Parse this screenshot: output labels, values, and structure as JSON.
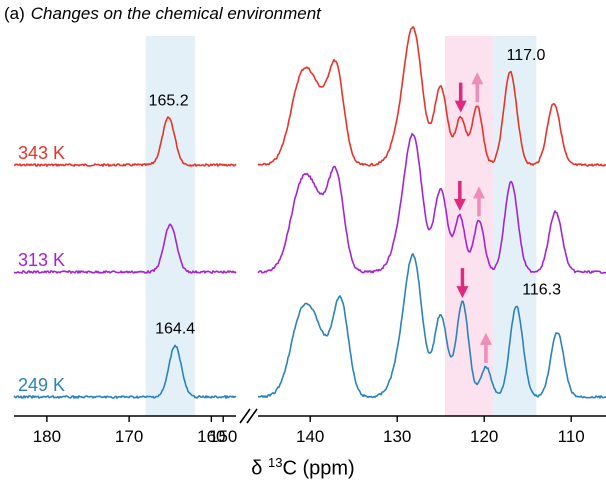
{
  "panel": {
    "tag": "(a)",
    "title": "Changes on the chemical environment"
  },
  "chart_data": {
    "type": "line",
    "xlabel": {
      "prefix": "δ ",
      "sup": "13",
      "suffix": "C (ppm)"
    },
    "x_reversed": true,
    "axis_break": {
      "between": [
        157,
        146
      ]
    },
    "xlim_left_segment": [
      184,
      157
    ],
    "xlim_right_segment": [
      146,
      106
    ],
    "xticks": [
      180,
      170,
      160,
      150,
      140,
      130,
      120,
      110
    ],
    "xtick_labels": [
      "180",
      "170",
      "160",
      "150",
      "140",
      "130",
      "120",
      "110"
    ],
    "highlight_bands": [
      {
        "x": [
          168,
          162
        ],
        "color": "#e3f0f8"
      },
      {
        "x": [
          124.5,
          119
        ],
        "color": "#fbe2ee"
      },
      {
        "x": [
          119,
          114
        ],
        "color": "#e3f0f8"
      }
    ],
    "series": [
      {
        "name": "343 K",
        "color": "#e8332a",
        "peaks": [
          [
            165.2,
            0.55,
            0.75
          ],
          [
            141,
            0.95,
            1.3
          ],
          [
            139,
            0.55,
            1.2
          ],
          [
            137,
            1.05,
            0.9
          ],
          [
            129,
            0.6,
            1.2
          ],
          [
            128,
            1.15,
            0.95
          ],
          [
            125,
            0.9,
            0.75
          ],
          [
            122.7,
            0.55,
            0.6
          ],
          [
            120.8,
            0.68,
            0.6
          ],
          [
            117.0,
            1.08,
            0.75
          ],
          [
            112,
            0.72,
            0.75
          ]
        ]
      },
      {
        "name": "313 K",
        "color": "#a424d4",
        "peaks": [
          [
            165.0,
            0.55,
            0.75
          ],
          [
            141,
            0.95,
            1.3
          ],
          [
            139,
            0.55,
            1.2
          ],
          [
            137,
            1.05,
            0.9
          ],
          [
            129,
            0.6,
            1.2
          ],
          [
            128,
            1.15,
            0.95
          ],
          [
            125,
            0.95,
            0.75
          ],
          [
            122.8,
            0.65,
            0.6
          ],
          [
            120.6,
            0.6,
            0.6
          ],
          [
            116.9,
            1.05,
            0.75
          ],
          [
            111.8,
            0.7,
            0.75
          ]
        ]
      },
      {
        "name": "249 K",
        "color": "#2a83bd",
        "peaks": [
          [
            164.4,
            0.6,
            0.75
          ],
          [
            141,
            0.9,
            1.3
          ],
          [
            139,
            0.55,
            1.2
          ],
          [
            136.5,
            1.1,
            0.9
          ],
          [
            129,
            0.6,
            1.2
          ],
          [
            128,
            1.2,
            0.95
          ],
          [
            125,
            0.95,
            0.75
          ],
          [
            122.5,
            1.1,
            0.7
          ],
          [
            119.8,
            0.35,
            0.6
          ],
          [
            116.3,
            1.05,
            0.75
          ],
          [
            111.6,
            0.75,
            0.75
          ]
        ]
      }
    ],
    "annotations": [
      {
        "text": "165.2",
        "x": 165.2,
        "series": 0,
        "color": "#000000"
      },
      {
        "text": "117.0",
        "x": 115.2,
        "series": 0,
        "color": "#000000"
      },
      {
        "text": "164.4",
        "x": 164.4,
        "series": 2,
        "color": "#000000"
      },
      {
        "text": "116.3",
        "x": 113.4,
        "series": 2,
        "color": "#000000"
      }
    ],
    "arrows": [
      {
        "series": 0,
        "x": 122.7,
        "direction": "down",
        "color": "#e0287c"
      },
      {
        "series": 0,
        "x": 120.8,
        "direction": "up",
        "color": "#f08cb8"
      },
      {
        "series": 1,
        "x": 122.8,
        "direction": "down",
        "color": "#e0287c"
      },
      {
        "series": 1,
        "x": 120.6,
        "direction": "up",
        "color": "#f08cb8"
      },
      {
        "series": 2,
        "x": 122.5,
        "direction": "down",
        "color": "#e0287c"
      },
      {
        "series": 2,
        "x": 119.8,
        "direction": "up",
        "color": "#f08cb8"
      }
    ]
  }
}
